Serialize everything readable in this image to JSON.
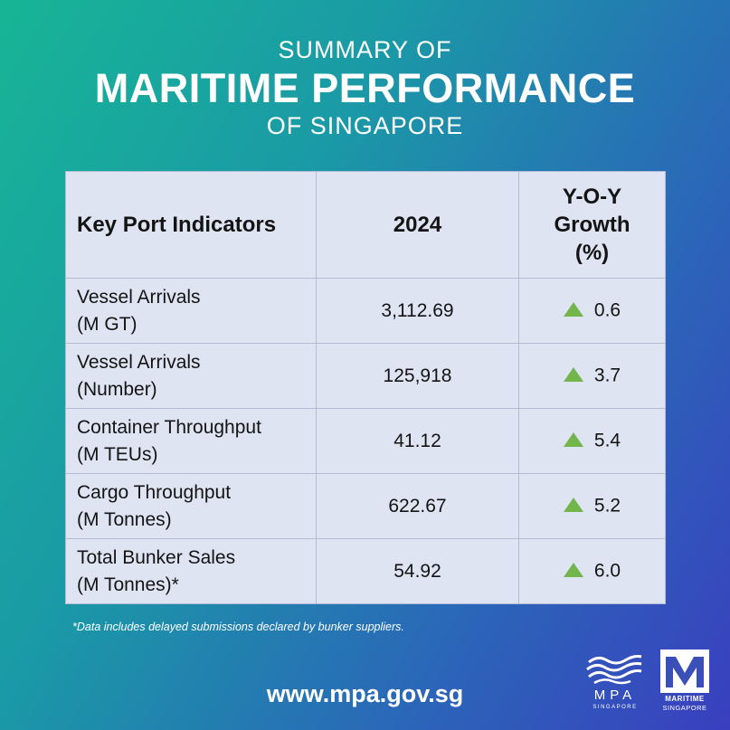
{
  "header": {
    "line1": "SUMMARY OF",
    "line2": "MARITIME PERFORMANCE",
    "line3": "OF SINGAPORE"
  },
  "table": {
    "col_label": "Key Port Indicators",
    "col_year": "2024",
    "col_growth_l1": "Y-O-Y",
    "col_growth_l2": "Growth",
    "col_growth_l3": "(%)",
    "rows": [
      {
        "label1": "Vessel Arrivals",
        "label2": "(M GT)",
        "value": "3,112.69",
        "growth": "0.6",
        "trend": "up"
      },
      {
        "label1": "Vessel Arrivals",
        "label2": "(Number)",
        "value": "125,918",
        "growth": "3.7",
        "trend": "up"
      },
      {
        "label1": "Container Throughput",
        "label2": "(M TEUs)",
        "value": "41.12",
        "growth": "5.4",
        "trend": "up"
      },
      {
        "label1": "Cargo Throughput",
        "label2": "(M Tonnes)",
        "value": "622.67",
        "growth": "5.2",
        "trend": "up"
      },
      {
        "label1": "Total Bunker Sales",
        "label2": "(M Tonnes)*",
        "value": "54.92",
        "growth": "6.0",
        "trend": "up"
      }
    ],
    "up_color": "#72b54b"
  },
  "footnote": "*Data includes delayed submissions declared by bunker suppliers.",
  "url": "www.mpa.gov.sg",
  "logos": {
    "mpa_text": "MPA",
    "mpa_sub": "SINGAPORE",
    "ms_line1": "MARITIME",
    "ms_line2": "SINGAPORE"
  }
}
